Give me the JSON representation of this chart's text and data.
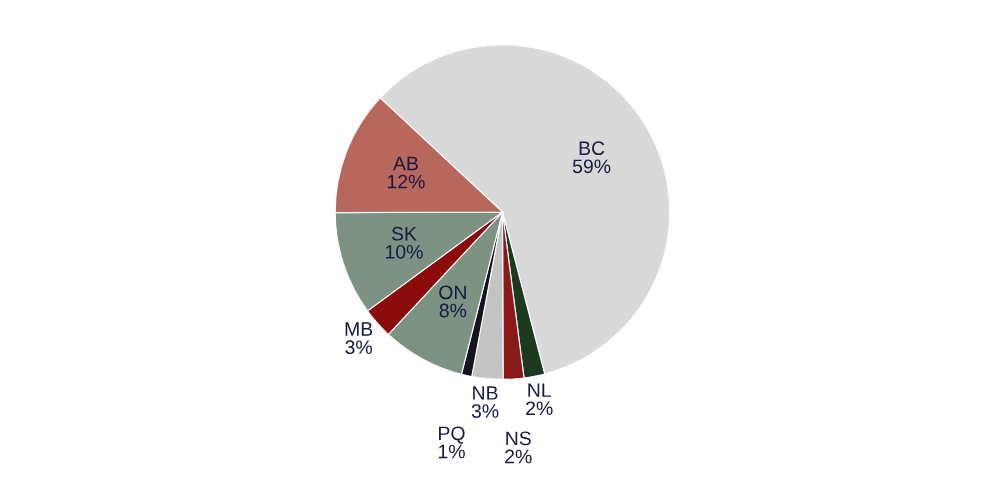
{
  "chart_data": {
    "type": "pie",
    "categories": [
      "BC",
      "NL",
      "NS",
      "NB",
      "PQ",
      "ON",
      "MB",
      "SK",
      "AB"
    ],
    "values": [
      59,
      2,
      2,
      3,
      1,
      8,
      3,
      10,
      12
    ],
    "value_labels": [
      "59%",
      "2%",
      "2%",
      "3%",
      "1%",
      "8%",
      "3%",
      "10%",
      "12%"
    ],
    "colors": [
      "#d9d9d9",
      "#1c3a1e",
      "#8a1a1a",
      "#c4c4c4",
      "#14141e",
      "#7d9283",
      "#8b0a0a",
      "#7d9283",
      "#b8675d"
    ]
  }
}
